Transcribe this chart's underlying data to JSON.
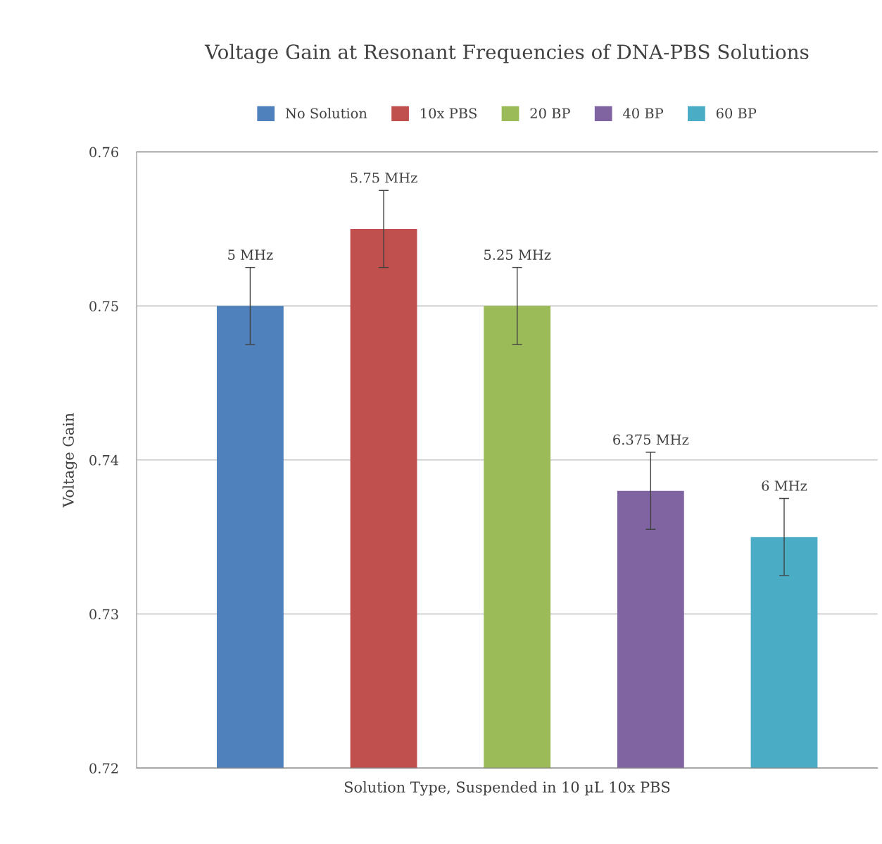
{
  "chart_data": {
    "type": "bar",
    "title": "Voltage Gain at Resonant Frequencies of DNA-PBS Solutions",
    "xlabel": "Solution Type, Suspended in 10 µL 10x PBS",
    "ylabel": "Voltage Gain",
    "categories": [
      null,
      null,
      null,
      null,
      null
    ],
    "series": [
      {
        "name": "No Solution",
        "color": "#4f81bd",
        "values": [
          0.75,
          null,
          null,
          null,
          null
        ],
        "errors": [
          0.0025,
          null,
          null,
          null,
          null
        ]
      },
      {
        "name": "10x PBS",
        "color": "#c0504d",
        "values": [
          null,
          0.755,
          null,
          null,
          null
        ],
        "errors": [
          null,
          0.0025,
          null,
          null,
          null
        ]
      },
      {
        "name": "20 BP",
        "color": "#9bbb59",
        "values": [
          null,
          null,
          0.75,
          null,
          null
        ],
        "errors": [
          null,
          null,
          0.0025,
          null,
          null
        ]
      },
      {
        "name": "40 BP",
        "color": "#8064a2",
        "values": [
          null,
          null,
          null,
          0.738,
          null
        ],
        "errors": [
          null,
          null,
          null,
          0.0025,
          null
        ]
      },
      {
        "name": "60 BP",
        "color": "#4bacc6",
        "values": [
          null,
          null,
          null,
          null,
          0.735
        ],
        "errors": [
          null,
          null,
          null,
          null,
          0.0025
        ]
      }
    ],
    "annotations": [
      {
        "text": "5 MHz",
        "y": 0.7525
      },
      {
        "text": "5.75 MHz",
        "y": 0.7575
      },
      {
        "text": "5.25 MHz",
        "y": 0.7525
      },
      {
        "text": "6.375 MHz",
        "y": 0.7405
      },
      {
        "text": "6 MHz",
        "y": 0.7375
      }
    ],
    "ylim": [
      0.72,
      0.76
    ],
    "yticks": [
      0.72,
      0.73,
      0.74,
      0.75,
      0.76
    ],
    "grid": "y",
    "legend": "top"
  }
}
